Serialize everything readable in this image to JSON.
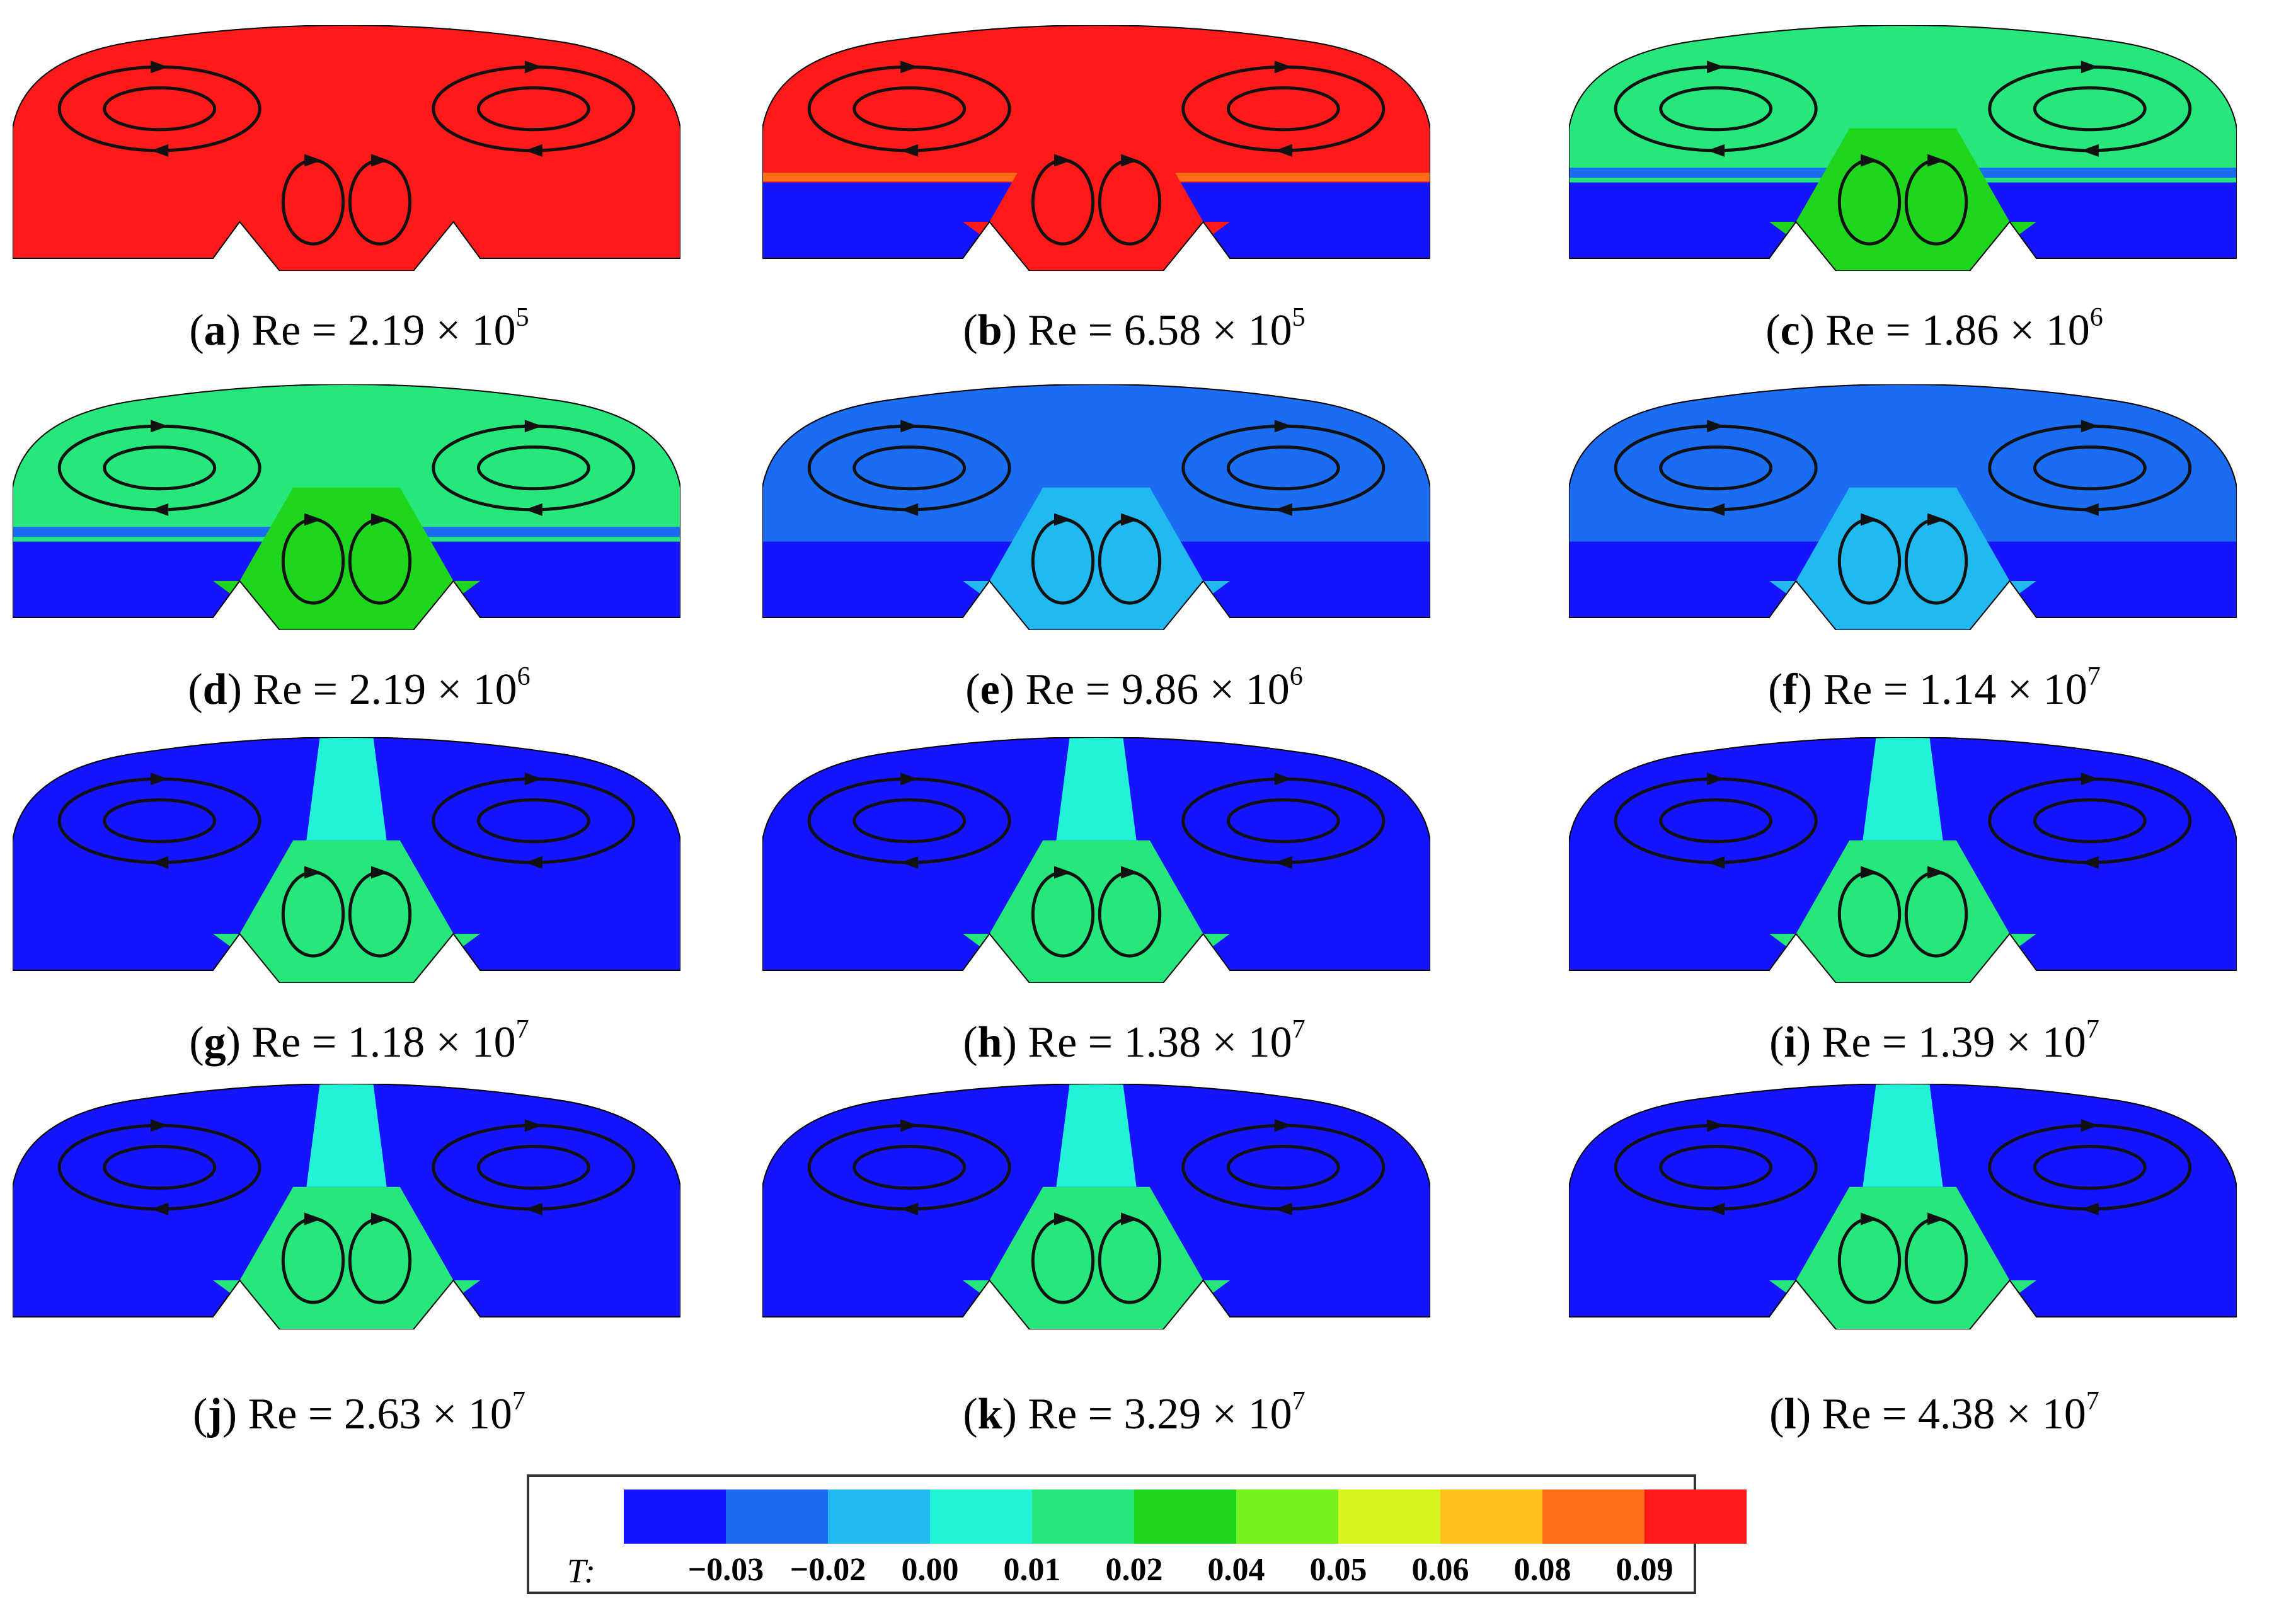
{
  "panels": [
    {
      "id": "a",
      "label": "a",
      "text": "Re = 2.19 × 10",
      "exp": "5",
      "regime": "hot"
    },
    {
      "id": "b",
      "label": "b",
      "text": "Re = 6.58 × 10",
      "exp": "5",
      "regime": "warm"
    },
    {
      "id": "c",
      "label": "c",
      "text": "Re = 1.86 × 10",
      "exp": "6",
      "regime": "green"
    },
    {
      "id": "d",
      "label": "d",
      "text": "Re = 2.19 × 10",
      "exp": "6",
      "regime": "green"
    },
    {
      "id": "e",
      "label": "e",
      "text": "Re = 9.86 × 10",
      "exp": "6",
      "regime": "blue"
    },
    {
      "id": "f",
      "label": "f",
      "text": "Re = 1.14 × 10",
      "exp": "7",
      "regime": "blue"
    },
    {
      "id": "g",
      "label": "g",
      "text": "Re = 1.18 × 10",
      "exp": "7",
      "regime": "cold"
    },
    {
      "id": "h",
      "label": "h",
      "text": "Re = 1.38 × 10",
      "exp": "7",
      "regime": "cold"
    },
    {
      "id": "i",
      "label": "i",
      "text": "Re = 1.39 × 10",
      "exp": "7",
      "regime": "cold"
    },
    {
      "id": "j",
      "label": "j",
      "text": "Re = 2.63 × 10",
      "exp": "7",
      "regime": "cold"
    },
    {
      "id": "k",
      "label": "k",
      "text": "Re = 3.29 × 10",
      "exp": "7",
      "regime": "cold"
    },
    {
      "id": "l",
      "label": "l",
      "text": "Re = 4.38 × 10",
      "exp": "7",
      "regime": "cold"
    }
  ],
  "legend": {
    "label": "T:",
    "colors": [
      "#1414ff",
      "#1a6cf0",
      "#21b9f0",
      "#23f2d6",
      "#25e77c",
      "#1ed61e",
      "#74f01c",
      "#d6f51c",
      "#ffc21c",
      "#ff6d14",
      "#ff1a1a"
    ],
    "ticks": [
      "−0.03",
      "−0.02",
      "0.00",
      "0.01",
      "0.02",
      "0.04",
      "0.05",
      "0.06",
      "0.08",
      "0.09"
    ]
  },
  "colors": {
    "hot": "#ff1a1a",
    "orange": "#ff6d14",
    "blue": "#1414ff",
    "mid_blue": "#1a6cf0",
    "cyan": "#23f2d6",
    "light_blue": "#21b9f0",
    "green": "#25e77c",
    "bright_green": "#1ed61e",
    "stroke": "#111111"
  }
}
